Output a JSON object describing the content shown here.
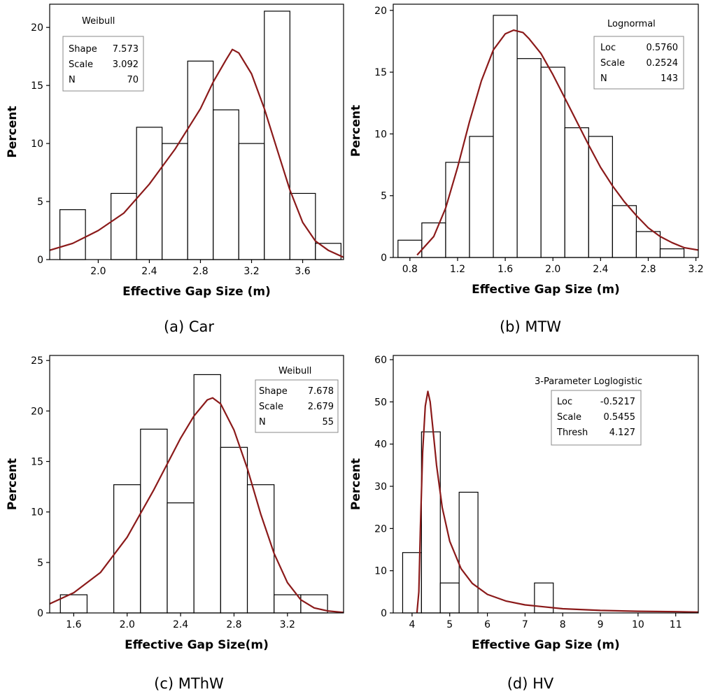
{
  "chart_data": [
    {
      "type": "bar",
      "caption": "(a) Car",
      "xlabel": "Effective Gap Size (m)",
      "ylabel": "Percent",
      "xlim": [
        1.62,
        3.92
      ],
      "ylim": [
        0,
        22
      ],
      "xticks": [
        "2.0",
        "2.4",
        "2.8",
        "3.2",
        "3.6"
      ],
      "xtick_values": [
        2.0,
        2.4,
        2.8,
        3.2,
        3.6
      ],
      "yticks": [
        "0",
        "5",
        "10",
        "15",
        "20"
      ],
      "ytick_values": [
        0,
        5,
        10,
        15,
        20
      ],
      "grid": false,
      "bins": [
        {
          "x0": 1.7,
          "x1": 1.9,
          "value": 4.3
        },
        {
          "x0": 1.9,
          "x1": 2.1,
          "value": 0.0
        },
        {
          "x0": 2.1,
          "x1": 2.3,
          "value": 5.7
        },
        {
          "x0": 2.3,
          "x1": 2.5,
          "value": 11.4
        },
        {
          "x0": 2.5,
          "x1": 2.7,
          "value": 10.0
        },
        {
          "x0": 2.7,
          "x1": 2.9,
          "value": 17.1
        },
        {
          "x0": 2.9,
          "x1": 3.1,
          "value": 12.9
        },
        {
          "x0": 3.1,
          "x1": 3.3,
          "value": 10.0
        },
        {
          "x0": 3.3,
          "x1": 3.5,
          "value": 21.4
        },
        {
          "x0": 3.5,
          "x1": 3.7,
          "value": 5.7
        },
        {
          "x0": 3.7,
          "x1": 3.9,
          "value": 1.4
        }
      ],
      "curve": {
        "distribution": "Weibull",
        "points": [
          [
            1.62,
            0.8
          ],
          [
            1.8,
            1.4
          ],
          [
            2.0,
            2.5
          ],
          [
            2.2,
            4.0
          ],
          [
            2.4,
            6.5
          ],
          [
            2.6,
            9.5
          ],
          [
            2.8,
            13.0
          ],
          [
            2.9,
            15.3
          ],
          [
            3.0,
            17.2
          ],
          [
            3.05,
            18.1
          ],
          [
            3.1,
            17.8
          ],
          [
            3.2,
            16.0
          ],
          [
            3.3,
            13.0
          ],
          [
            3.4,
            9.5
          ],
          [
            3.5,
            6.0
          ],
          [
            3.6,
            3.2
          ],
          [
            3.7,
            1.6
          ],
          [
            3.8,
            0.8
          ],
          [
            3.92,
            0.2
          ]
        ]
      },
      "legend": {
        "title": "Weibull",
        "placement": "top-left",
        "rows": [
          {
            "label": "Shape",
            "value": "7.573"
          },
          {
            "label": "Scale",
            "value": "3.092"
          },
          {
            "label": "N",
            "value": "70"
          }
        ]
      }
    },
    {
      "type": "bar",
      "caption": "(b) MTW",
      "xlabel": "Effective Gap Size (m)",
      "ylabel": "Percent",
      "xlim": [
        0.66,
        3.22
      ],
      "ylim": [
        0,
        20.5
      ],
      "xticks": [
        "0.8",
        "1.2",
        "1.6",
        "2.0",
        "2.4",
        "2.8",
        "3.2"
      ],
      "xtick_values": [
        0.8,
        1.2,
        1.6,
        2.0,
        2.4,
        2.8,
        3.2
      ],
      "yticks": [
        "0",
        "5",
        "10",
        "15",
        "20"
      ],
      "ytick_values": [
        0,
        5,
        10,
        15,
        20
      ],
      "grid": false,
      "bins": [
        {
          "x0": 0.7,
          "x1": 0.9,
          "value": 1.4
        },
        {
          "x0": 0.9,
          "x1": 1.1,
          "value": 2.8
        },
        {
          "x0": 1.1,
          "x1": 1.3,
          "value": 7.7
        },
        {
          "x0": 1.3,
          "x1": 1.5,
          "value": 9.8
        },
        {
          "x0": 1.5,
          "x1": 1.7,
          "value": 19.6
        },
        {
          "x0": 1.7,
          "x1": 1.9,
          "value": 16.1
        },
        {
          "x0": 1.9,
          "x1": 2.1,
          "value": 15.4
        },
        {
          "x0": 2.1,
          "x1": 2.3,
          "value": 10.5
        },
        {
          "x0": 2.3,
          "x1": 2.5,
          "value": 9.8
        },
        {
          "x0": 2.5,
          "x1": 2.7,
          "value": 4.2
        },
        {
          "x0": 2.7,
          "x1": 2.9,
          "value": 2.1
        },
        {
          "x0": 2.9,
          "x1": 3.1,
          "value": 0.7
        }
      ],
      "curve": {
        "distribution": "Lognormal",
        "points": [
          [
            0.86,
            0.2
          ],
          [
            1.0,
            1.7
          ],
          [
            1.1,
            4.0
          ],
          [
            1.2,
            7.3
          ],
          [
            1.3,
            11.0
          ],
          [
            1.4,
            14.3
          ],
          [
            1.5,
            16.8
          ],
          [
            1.6,
            18.1
          ],
          [
            1.67,
            18.4
          ],
          [
            1.75,
            18.2
          ],
          [
            1.8,
            17.7
          ],
          [
            1.9,
            16.5
          ],
          [
            2.0,
            14.8
          ],
          [
            2.1,
            12.9
          ],
          [
            2.2,
            11.0
          ],
          [
            2.3,
            9.1
          ],
          [
            2.4,
            7.3
          ],
          [
            2.5,
            5.8
          ],
          [
            2.6,
            4.5
          ],
          [
            2.7,
            3.4
          ],
          [
            2.8,
            2.4
          ],
          [
            2.9,
            1.7
          ],
          [
            3.0,
            1.2
          ],
          [
            3.1,
            0.8
          ],
          [
            3.22,
            0.6
          ]
        ]
      },
      "legend": {
        "title": "Lognormal",
        "placement": "top-right",
        "rows": [
          {
            "label": "Loc",
            "value": "0.5760"
          },
          {
            "label": "Scale",
            "value": "0.2524"
          },
          {
            "label": "N",
            "value": "143"
          }
        ]
      }
    },
    {
      "type": "bar",
      "caption": "(c) MThW",
      "xlabel": "Effective Gap Size(m)",
      "ylabel": "Percent",
      "xlim": [
        1.42,
        3.62
      ],
      "ylim": [
        0,
        25.5
      ],
      "xticks": [
        "1.6",
        "2.0",
        "2.4",
        "2.8",
        "3.2"
      ],
      "xtick_values": [
        1.6,
        2.0,
        2.4,
        2.8,
        3.2
      ],
      "yticks": [
        "0",
        "5",
        "10",
        "15",
        "20",
        "25"
      ],
      "ytick_values": [
        0,
        5,
        10,
        15,
        20,
        25
      ],
      "grid": false,
      "bins": [
        {
          "x0": 1.5,
          "x1": 1.7,
          "value": 1.8
        },
        {
          "x0": 1.7,
          "x1": 1.9,
          "value": 0.0
        },
        {
          "x0": 1.9,
          "x1": 2.1,
          "value": 12.7
        },
        {
          "x0": 2.1,
          "x1": 2.3,
          "value": 18.2
        },
        {
          "x0": 2.3,
          "x1": 2.5,
          "value": 10.9
        },
        {
          "x0": 2.5,
          "x1": 2.7,
          "value": 23.6
        },
        {
          "x0": 2.7,
          "x1": 2.9,
          "value": 16.4
        },
        {
          "x0": 2.9,
          "x1": 3.1,
          "value": 12.7
        },
        {
          "x0": 3.1,
          "x1": 3.3,
          "value": 1.8
        },
        {
          "x0": 3.3,
          "x1": 3.5,
          "value": 1.8
        }
      ],
      "curve": {
        "distribution": "Weibull",
        "points": [
          [
            1.42,
            0.9
          ],
          [
            1.6,
            2.0
          ],
          [
            1.8,
            4.0
          ],
          [
            2.0,
            7.5
          ],
          [
            2.2,
            12.2
          ],
          [
            2.4,
            17.3
          ],
          [
            2.5,
            19.5
          ],
          [
            2.6,
            21.1
          ],
          [
            2.64,
            21.3
          ],
          [
            2.7,
            20.7
          ],
          [
            2.8,
            18.1
          ],
          [
            2.9,
            14.3
          ],
          [
            3.0,
            9.8
          ],
          [
            3.1,
            5.9
          ],
          [
            3.2,
            3.0
          ],
          [
            3.3,
            1.3
          ],
          [
            3.4,
            0.5
          ],
          [
            3.5,
            0.2
          ],
          [
            3.62,
            0.05
          ]
        ]
      },
      "legend": {
        "title": "Weibull",
        "placement": "top-right",
        "rows": [
          {
            "label": "Shape",
            "value": "7.678"
          },
          {
            "label": "Scale",
            "value": "2.679"
          },
          {
            "label": "N",
            "value": "55"
          }
        ]
      }
    },
    {
      "type": "bar",
      "caption": "(d) HV",
      "xlabel": "Effective Gap Size (m)",
      "ylabel": "Percent",
      "xlim": [
        3.5,
        11.6
      ],
      "ylim": [
        0,
        61
      ],
      "xticks": [
        "4",
        "5",
        "6",
        "7",
        "8",
        "9",
        "10",
        "11"
      ],
      "xtick_values": [
        4,
        5,
        6,
        7,
        8,
        9,
        10,
        11
      ],
      "yticks": [
        "0",
        "10",
        "20",
        "30",
        "40",
        "50",
        "60"
      ],
      "ytick_values": [
        0,
        10,
        20,
        30,
        40,
        50,
        60
      ],
      "grid": false,
      "bins": [
        {
          "x0": 3.75,
          "x1": 4.25,
          "value": 14.3
        },
        {
          "x0": 4.25,
          "x1": 4.75,
          "value": 42.9
        },
        {
          "x0": 4.75,
          "x1": 5.25,
          "value": 7.1
        },
        {
          "x0": 5.25,
          "x1": 5.75,
          "value": 28.6
        },
        {
          "x0": 5.75,
          "x1": 6.25,
          "value": 0.0
        },
        {
          "x0": 6.25,
          "x1": 6.75,
          "value": 0.0
        },
        {
          "x0": 6.75,
          "x1": 7.25,
          "value": 0.0
        },
        {
          "x0": 7.25,
          "x1": 7.75,
          "value": 7.1
        }
      ],
      "curve": {
        "distribution": "3-Parameter Loglogistic",
        "points": [
          [
            4.13,
            0.0
          ],
          [
            4.18,
            5.0
          ],
          [
            4.22,
            20.0
          ],
          [
            4.28,
            38.0
          ],
          [
            4.35,
            49.0
          ],
          [
            4.42,
            52.5
          ],
          [
            4.48,
            50.0
          ],
          [
            4.55,
            44.0
          ],
          [
            4.65,
            35.0
          ],
          [
            4.8,
            25.0
          ],
          [
            5.0,
            17.0
          ],
          [
            5.3,
            10.5
          ],
          [
            5.6,
            7.0
          ],
          [
            6.0,
            4.4
          ],
          [
            6.5,
            2.8
          ],
          [
            7.0,
            1.9
          ],
          [
            8.0,
            1.0
          ],
          [
            9.0,
            0.6
          ],
          [
            10.0,
            0.4
          ],
          [
            11.0,
            0.3
          ],
          [
            11.6,
            0.2
          ]
        ]
      },
      "legend": {
        "title": "3-Parameter Loglogistic",
        "placement": "top-right",
        "rows": [
          {
            "label": "Loc",
            "value": "-0.5217"
          },
          {
            "label": "Scale",
            "value": "0.5455"
          },
          {
            "label": "Thresh",
            "value": "4.127"
          }
        ]
      }
    }
  ],
  "colors": {
    "curve": "#8b1a1a",
    "bar_fill": "#ffffff",
    "bar_stroke": "#000000",
    "axis": "#000000",
    "legend_border": "#888888"
  }
}
